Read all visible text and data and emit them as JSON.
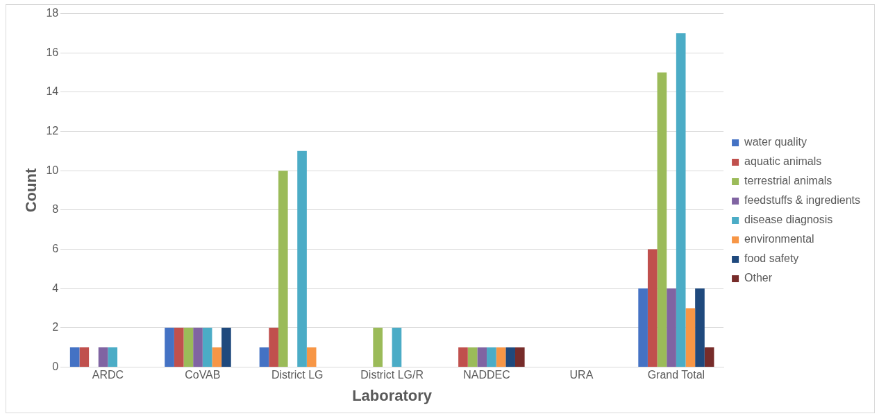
{
  "chart_data": {
    "type": "bar",
    "xlabel": "Laboratory",
    "ylabel": "Count",
    "categories": [
      "ARDC",
      "CoVAB",
      "District LG",
      "District LG/R",
      "NADDEC",
      "URA",
      "Grand Total"
    ],
    "series": [
      {
        "name": "water quality",
        "color": "#4472c4",
        "values": [
          1,
          2,
          1,
          0,
          0,
          0,
          4
        ]
      },
      {
        "name": "aquatic animals",
        "color": "#c0504d",
        "values": [
          1,
          2,
          2,
          0,
          1,
          0,
          6
        ]
      },
      {
        "name": "terrestrial animals",
        "color": "#9bbb59",
        "values": [
          0,
          2,
          10,
          2,
          1,
          0,
          15
        ]
      },
      {
        "name": "feedstuffs & ingredients",
        "color": "#8064a2",
        "values": [
          1,
          2,
          0,
          0,
          1,
          0,
          4
        ]
      },
      {
        "name": "disease diagnosis",
        "color": "#4bacc6",
        "values": [
          1,
          2,
          11,
          2,
          1,
          0,
          17
        ]
      },
      {
        "name": "environmental",
        "color": "#f79646",
        "values": [
          0,
          1,
          1,
          0,
          1,
          0,
          3
        ]
      },
      {
        "name": "food safety",
        "color": "#1f497d",
        "values": [
          0,
          2,
          0,
          0,
          1,
          0,
          4
        ]
      },
      {
        "name": "Other",
        "color": "#772c2a",
        "values": [
          0,
          0,
          0,
          0,
          1,
          0,
          1
        ]
      }
    ],
    "ylim": [
      0,
      18
    ],
    "yticks": [
      0,
      2,
      4,
      6,
      8,
      10,
      12,
      14,
      16,
      18
    ],
    "grid": "y",
    "legend": "right"
  }
}
